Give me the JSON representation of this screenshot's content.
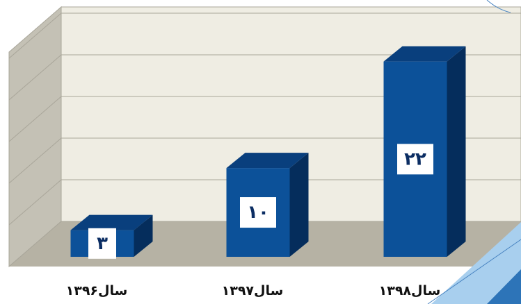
{
  "chart_data": {
    "type": "bar",
    "categories": [
      "سال۱۳۹۶",
      "سال۱۳۹۷",
      "سال۱۳۹۸"
    ],
    "values": [
      3,
      10,
      22
    ],
    "value_labels": [
      "۳",
      "۱۰",
      "۲۲"
    ],
    "title": "",
    "xlabel": "",
    "ylabel": "",
    "ylim": [
      0,
      24
    ],
    "grid": true,
    "legend": "none",
    "style": "3d-column"
  },
  "colors": {
    "bar_front": "#0c5199",
    "bar_top": "#093f7d",
    "bar_side": "#052d5c",
    "back_wall": "#efede3",
    "side_wall": "#c4c1b5",
    "floor": "#b6b2a4",
    "gridline": "#a9a69a",
    "label_box": "#ffffff",
    "label_text": "#0b2d63",
    "accent_stripe": "#a8cfee",
    "accent_dark": "#2d74b8"
  }
}
